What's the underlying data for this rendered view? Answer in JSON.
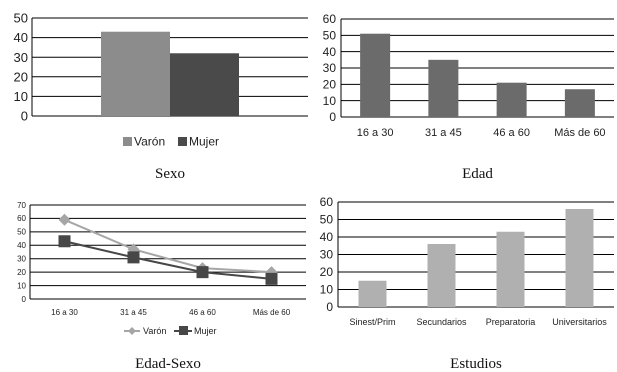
{
  "colors": {
    "varon": "#8c8c8c",
    "mujer": "#4a4a4a",
    "edad_bar": "#6b6b6b",
    "estudios_bar": "#b0b0b0",
    "varon_line": "#a6a6a6",
    "mujer_line": "#474747",
    "grid": "#000000"
  },
  "chart_data": [
    {
      "id": "sexo",
      "type": "bar",
      "title": "Sexo",
      "categories": [
        ""
      ],
      "series": [
        {
          "name": "Varón",
          "values": [
            43
          ]
        },
        {
          "name": "Mujer",
          "values": [
            32
          ]
        }
      ],
      "ylim": [
        0,
        50
      ],
      "yticks": [
        0,
        10,
        20,
        30,
        40,
        50
      ],
      "grid": true,
      "legend": "bottom"
    },
    {
      "id": "edad",
      "type": "bar",
      "title": "Edad",
      "categories": [
        "16 a 30",
        "31 a 45",
        "46 a 60",
        "Más de 60"
      ],
      "values": [
        51,
        35,
        21,
        17
      ],
      "ylim": [
        0,
        60
      ],
      "yticks": [
        0,
        10,
        20,
        30,
        40,
        50,
        60
      ],
      "grid": true
    },
    {
      "id": "edad_sexo",
      "type": "line",
      "title": "Edad-Sexo",
      "categories": [
        "16 a 30",
        "31 a 45",
        "46 a 60",
        "Más de 60"
      ],
      "series": [
        {
          "name": "Varón",
          "values": [
            59,
            37,
            23,
            20
          ]
        },
        {
          "name": "Mujer",
          "values": [
            43,
            31,
            20,
            15
          ]
        }
      ],
      "ylim": [
        0,
        70
      ],
      "yticks": [
        0,
        10,
        20,
        30,
        40,
        50,
        60,
        70
      ],
      "grid": true,
      "legend": "bottom"
    },
    {
      "id": "estudios",
      "type": "bar",
      "title": "Estudios",
      "categories": [
        "Sinest/Prim",
        "Secundarios",
        "Preparatoria",
        "Universitarios"
      ],
      "values": [
        15,
        36,
        43,
        56
      ],
      "ylim": [
        0,
        60
      ],
      "yticks": [
        0,
        10,
        20,
        30,
        40,
        50,
        60
      ],
      "grid": true
    }
  ]
}
